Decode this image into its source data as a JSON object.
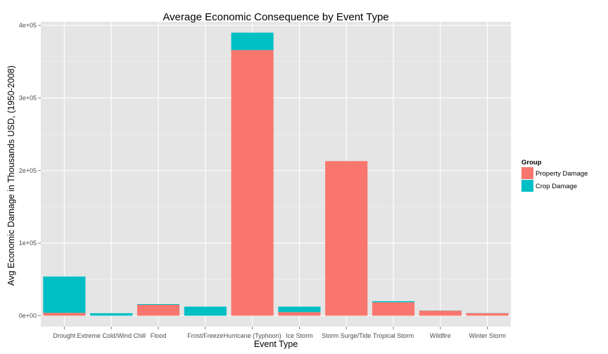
{
  "chart_data": {
    "type": "bar",
    "stacked": true,
    "title": "Average Economic Consequence by Event Type",
    "xlabel": "Event Type",
    "ylabel": "Avg Economic Damage in Thousands USD, (1950-2008)",
    "categories": [
      "Drought",
      "Extreme Cold/Wind Chill",
      "Flood",
      "Frost/Freeze",
      "Hurricane (Typhoon)",
      "Ice Storm",
      "Storm Surge/Tide",
      "Tropical Storm",
      "Wildfire",
      "Winter Storm"
    ],
    "series": [
      {
        "name": "Property Damage",
        "color": "#F8766D",
        "values": [
          4000,
          0,
          15000,
          0,
          366000,
          5000,
          213000,
          18500,
          7000,
          3500
        ]
      },
      {
        "name": "Crop Damage",
        "color": "#00BFC4",
        "values": [
          50000,
          3500,
          1000,
          12500,
          24000,
          7500,
          0,
          1500,
          200,
          200
        ]
      }
    ],
    "ylim": [
      -15000,
      405000
    ],
    "yticks": [
      0,
      100000,
      200000,
      300000,
      400000
    ],
    "ytick_labels": [
      "0e+00",
      "1e+05",
      "2e+05",
      "3e+05",
      "4e+05"
    ],
    "grid": true,
    "legend": {
      "title": "Group",
      "position": "right"
    }
  }
}
